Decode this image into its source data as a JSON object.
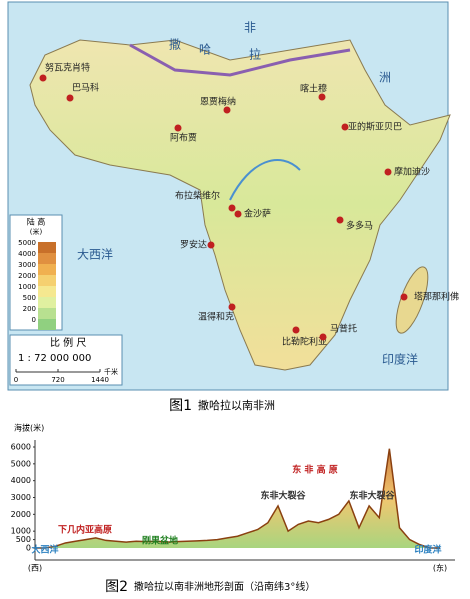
{
  "map": {
    "cities": [
      "努瓦克肖特",
      "巴马科",
      "阿布贾",
      "恩贾梅纳",
      "喀土穆",
      "亚的斯亚贝巴",
      "摩加迪沙",
      "布拉柴维尔",
      "金沙萨",
      "罗安达",
      "多多马",
      "温得和克",
      "塔那那利佛",
      "比勒陀利亚",
      "马普托"
    ],
    "labels": [
      "撒",
      "哈",
      "拉",
      "大西洋",
      "印度洋",
      "非",
      "洲"
    ],
    "legend": {
      "title": "陆 高",
      "unit": "(米)",
      "levels": [
        5000,
        4000,
        3000,
        2000,
        1000,
        500,
        200,
        0
      ]
    },
    "scale": {
      "title": "比 例 尺",
      "ratio": "1 : 72 000 000",
      "ticks": [
        0,
        720,
        1440
      ],
      "unit": "千米"
    },
    "caption": {
      "number": "图1",
      "text": "撒哈拉以南非洲"
    }
  },
  "chart_data": {
    "type": "area",
    "y_label": "海拔(米)",
    "categories": [
      "(西)",
      null,
      null,
      null,
      null,
      null,
      null,
      null,
      null,
      null,
      null,
      null,
      null,
      null,
      null,
      null,
      null,
      null,
      null,
      null,
      null,
      null,
      null,
      null,
      null,
      null,
      null,
      null,
      null,
      null,
      null,
      null,
      null,
      null,
      null,
      null,
      null,
      null,
      null,
      null,
      "(东)"
    ],
    "values": [
      0,
      0,
      100,
      300,
      400,
      500,
      600,
      450,
      400,
      350,
      400,
      380,
      400,
      350,
      380,
      400,
      420,
      450,
      500,
      600,
      700,
      900,
      1100,
      1500,
      2500,
      1000,
      1400,
      1600,
      1500,
      1700,
      2000,
      2800,
      1200,
      2500,
      1800,
      5895,
      1200,
      500,
      200,
      0,
      0
    ],
    "ylim": [
      0,
      6000
    ],
    "yticks": [
      0,
      500,
      1000,
      2000,
      3000,
      4000,
      5000,
      6000
    ],
    "annotations": [
      "下几内亚高原",
      "刚果盆地",
      "东 非 高 原",
      "东非大裂谷",
      "东非大裂谷",
      "大西洋",
      "印度洋"
    ],
    "caption": {
      "number": "图2",
      "text": "撒哈拉以南非洲地形剖面（沿南纬3°线）"
    }
  }
}
